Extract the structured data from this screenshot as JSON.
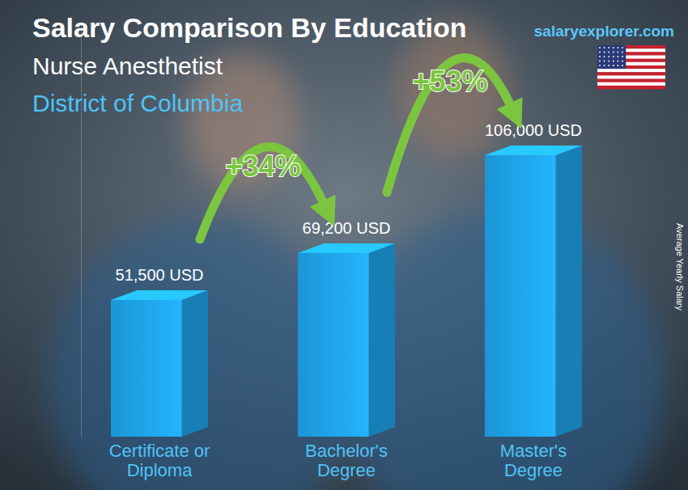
{
  "chart_data": {
    "type": "bar",
    "title": "Salary Comparison By Education",
    "subtitle": "Nurse Anesthetist",
    "location": "District of Columbia",
    "source": "salaryexplorer.com",
    "y_label": "Average Yearly Salary",
    "categories": [
      "Certificate or Diploma",
      "Bachelor's Degree",
      "Master's Degree"
    ],
    "values": [
      51500,
      69200,
      106000
    ],
    "value_labels": [
      "51,500 USD",
      "69,200 USD",
      "106,000 USD"
    ],
    "data_labels": true,
    "color": "#1fa3ea",
    "ylim": [
      0,
      156000
    ],
    "tick_labels": false,
    "grid": false,
    "annotations": [
      {
        "text": "+34%",
        "from": "Certificate or Diploma",
        "to": "Bachelor's Degree"
      },
      {
        "text": "+53%",
        "from": "Bachelor's Degree",
        "to": "Master's Degree"
      }
    ]
  }
}
